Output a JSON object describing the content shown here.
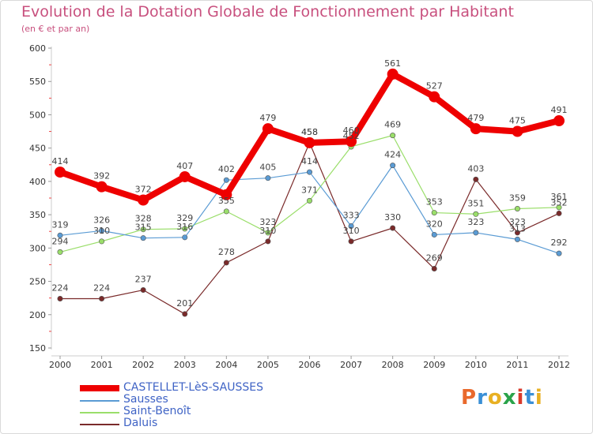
{
  "header": {
    "title": "Evolution de la Dotation Globale de Fonctionnement par Habitant",
    "subtitle": "(en € et par an)"
  },
  "logo": {
    "letters": [
      "P",
      "r",
      "o",
      "x",
      "i",
      "t",
      "i"
    ],
    "colors": [
      "#e9692c",
      "#3a8fd6",
      "#e8b023",
      "#2aa34a",
      "#d93a2b",
      "#3a8fd6",
      "#e8b023"
    ]
  },
  "chart_data": {
    "type": "line",
    "title": "Evolution de la Dotation Globale de Fonctionnement par Habitant",
    "subtitle": "(en € et par an)",
    "xlabel": "",
    "ylabel": "",
    "x": [
      "2000",
      "2001",
      "2002",
      "2003",
      "2004",
      "2005",
      "2006",
      "2007",
      "2008",
      "2009",
      "2010",
      "2011",
      "2012"
    ],
    "ylim": [
      150,
      600
    ],
    "yticks": [
      150,
      200,
      250,
      300,
      350,
      400,
      450,
      500,
      550,
      600
    ],
    "grid": false,
    "legend_position": "bottom-left",
    "series": [
      {
        "name": "CASTELLET-LèS-SAUSSES",
        "color": "#ee0000",
        "values": [
          414,
          392,
          372,
          407,
          380,
          479,
          458,
          460,
          561,
          527,
          479,
          475,
          491
        ],
        "labels": [
          "414",
          "392",
          "372",
          "407",
          "",
          "479",
          "458",
          "460",
          "561",
          "527",
          "479",
          "475",
          "491"
        ]
      },
      {
        "name": "Sausses",
        "color": "#5a9bd4",
        "values": [
          319,
          326,
          315,
          316,
          402,
          405,
          414,
          333,
          424,
          320,
          323,
          313,
          292
        ],
        "labels": [
          "319",
          "326",
          "315",
          "316",
          "402",
          "405",
          "414",
          "333",
          "424",
          "320",
          "323",
          "313",
          "292"
        ]
      },
      {
        "name": "Saint-Benoît",
        "color": "#9ade6a",
        "values": [
          294,
          310,
          328,
          329,
          355,
          323,
          371,
          452,
          469,
          353,
          351,
          359,
          361
        ],
        "labels": [
          "294",
          "310",
          "328",
          "329",
          "355",
          "323",
          "371",
          "452",
          "469",
          "353",
          "351",
          "359",
          "361"
        ]
      },
      {
        "name": "Daluis",
        "color": "#7a2a2a",
        "values": [
          224,
          224,
          237,
          201,
          278,
          310,
          458,
          310,
          330,
          269,
          403,
          323,
          352
        ],
        "labels": [
          "224",
          "224",
          "237",
          "201",
          "278",
          "310",
          "458",
          "310",
          "330",
          "269",
          "403",
          "323",
          "352"
        ]
      }
    ]
  }
}
